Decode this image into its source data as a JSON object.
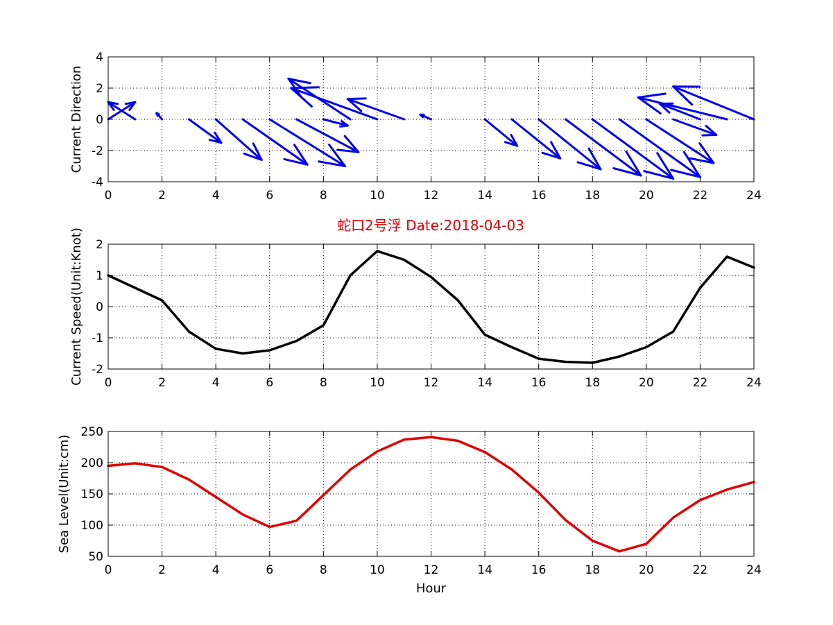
{
  "figure": {
    "title": "蛇口2号浮   Date:2018-04-03",
    "title_color": "#e00000"
  },
  "chart_data": [
    {
      "type": "quiver",
      "ylabel": "Current Direction",
      "xlabel": "",
      "xlim": [
        0,
        24
      ],
      "ylim": [
        -4,
        4
      ],
      "x_ticks": [
        0,
        2,
        4,
        6,
        8,
        10,
        12,
        14,
        16,
        18,
        20,
        22,
        24
      ],
      "y_ticks": [
        4,
        2,
        0,
        -2,
        -4
      ],
      "grid": true,
      "color": "#0000ee",
      "vectors": [
        {
          "x": 0,
          "u": 1.0,
          "v": 1.1
        },
        {
          "x": 1,
          "u": -1.0,
          "v": 1.1
        },
        {
          "x": 2,
          "u": -0.2,
          "v": 0.4
        },
        {
          "x": 3,
          "u": 1.2,
          "v": -1.5
        },
        {
          "x": 4,
          "u": 1.7,
          "v": -2.6
        },
        {
          "x": 5,
          "u": 2.4,
          "v": -2.9
        },
        {
          "x": 6,
          "u": 2.8,
          "v": -3.0
        },
        {
          "x": 7,
          "u": 2.3,
          "v": -2.1
        },
        {
          "x": 8,
          "u": 0.9,
          "v": -0.4
        },
        {
          "x": 9,
          "u": -2.3,
          "v": 2.6
        },
        {
          "x": 10,
          "u": -3.2,
          "v": 2.0
        },
        {
          "x": 11,
          "u": -2.1,
          "v": 1.3
        },
        {
          "x": 12,
          "u": -0.4,
          "v": 0.3
        },
        {
          "x": 13,
          "u": 0,
          "v": 0
        },
        {
          "x": 14,
          "u": 1.2,
          "v": -1.7
        },
        {
          "x": 15,
          "u": 1.8,
          "v": -2.5
        },
        {
          "x": 16,
          "u": 2.3,
          "v": -3.2
        },
        {
          "x": 17,
          "u": 2.8,
          "v": -3.6
        },
        {
          "x": 18,
          "u": 3.0,
          "v": -3.8
        },
        {
          "x": 19,
          "u": 3.0,
          "v": -3.7
        },
        {
          "x": 20,
          "u": 2.5,
          "v": -2.8
        },
        {
          "x": 21,
          "u": 1.6,
          "v": -1.0
        },
        {
          "x": 22,
          "u": -1.5,
          "v": 1.0
        },
        {
          "x": 23,
          "u": -3.3,
          "v": 1.4
        },
        {
          "x": 24,
          "u": -3.0,
          "v": 2.1
        }
      ]
    },
    {
      "type": "line",
      "ylabel": "Current Speed(Unit:Knot)",
      "xlabel": "",
      "xlim": [
        0,
        24
      ],
      "ylim": [
        -2,
        2
      ],
      "x_ticks": [
        0,
        2,
        4,
        6,
        8,
        10,
        12,
        14,
        16,
        18,
        20,
        22,
        24
      ],
      "y_ticks": [
        2,
        1,
        0,
        -1,
        -2
      ],
      "grid": true,
      "color": "#000000",
      "x": [
        0,
        1,
        2,
        3,
        4,
        5,
        6,
        7,
        8,
        9,
        10,
        11,
        12,
        13,
        14,
        15,
        16,
        17,
        18,
        19,
        20,
        21,
        22,
        23,
        24
      ],
      "y": [
        1.0,
        0.6,
        0.2,
        -0.8,
        -1.35,
        -1.5,
        -1.4,
        -1.1,
        -0.6,
        1.0,
        1.78,
        1.5,
        0.95,
        0.2,
        -0.9,
        -1.3,
        -1.67,
        -1.77,
        -1.8,
        -1.6,
        -1.3,
        -0.8,
        0.6,
        1.6,
        1.25
      ]
    },
    {
      "type": "line",
      "ylabel": "Sea Level(Unit:cm)",
      "xlabel": "Hour",
      "xlim": [
        0,
        24
      ],
      "ylim": [
        50,
        250
      ],
      "x_ticks": [
        0,
        2,
        4,
        6,
        8,
        10,
        12,
        14,
        16,
        18,
        20,
        22,
        24
      ],
      "y_ticks": [
        250,
        200,
        150,
        100,
        50
      ],
      "grid": true,
      "color": "#e00000",
      "x": [
        0,
        1,
        2,
        3,
        4,
        5,
        6,
        7,
        8,
        9,
        10,
        11,
        12,
        13,
        14,
        15,
        16,
        17,
        18,
        19,
        20,
        21,
        22,
        23,
        24
      ],
      "y": [
        195,
        199,
        193,
        173,
        145,
        117,
        97,
        107,
        148,
        189,
        218,
        237,
        241,
        235,
        217,
        189,
        152,
        108,
        75,
        58,
        70,
        112,
        140,
        157,
        169
      ]
    }
  ]
}
